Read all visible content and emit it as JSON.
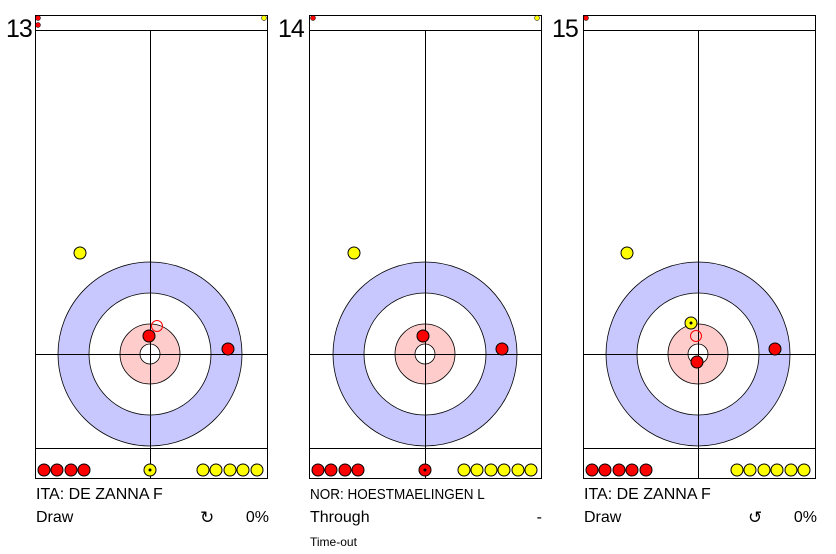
{
  "colors": {
    "red_stone": "#ff0000",
    "yellow_stone": "#ffff00",
    "outer_ring": "#c8c8ff",
    "inner_ring": "#ffcccc",
    "line": "#000000"
  },
  "panels": [
    {
      "shot_number": "13",
      "player": "ITA: DE ZANNA F",
      "shot_type": "Draw",
      "rotation": "↻",
      "rotation_icon": "clockwise-rotation-icon",
      "percentage": "0%",
      "note": ""
    },
    {
      "shot_number": "14",
      "player": "NOR: HOESTMAELINGEN L",
      "shot_type": "Through",
      "rotation": "",
      "rotation_icon": "",
      "percentage": "-",
      "note": "Time-out"
    },
    {
      "shot_number": "15",
      "player": "ITA: DE ZANNA F",
      "shot_type": "Draw",
      "rotation": "↺",
      "rotation_icon": "counterclockwise-rotation-icon",
      "percentage": "0%",
      "note": ""
    }
  ]
}
